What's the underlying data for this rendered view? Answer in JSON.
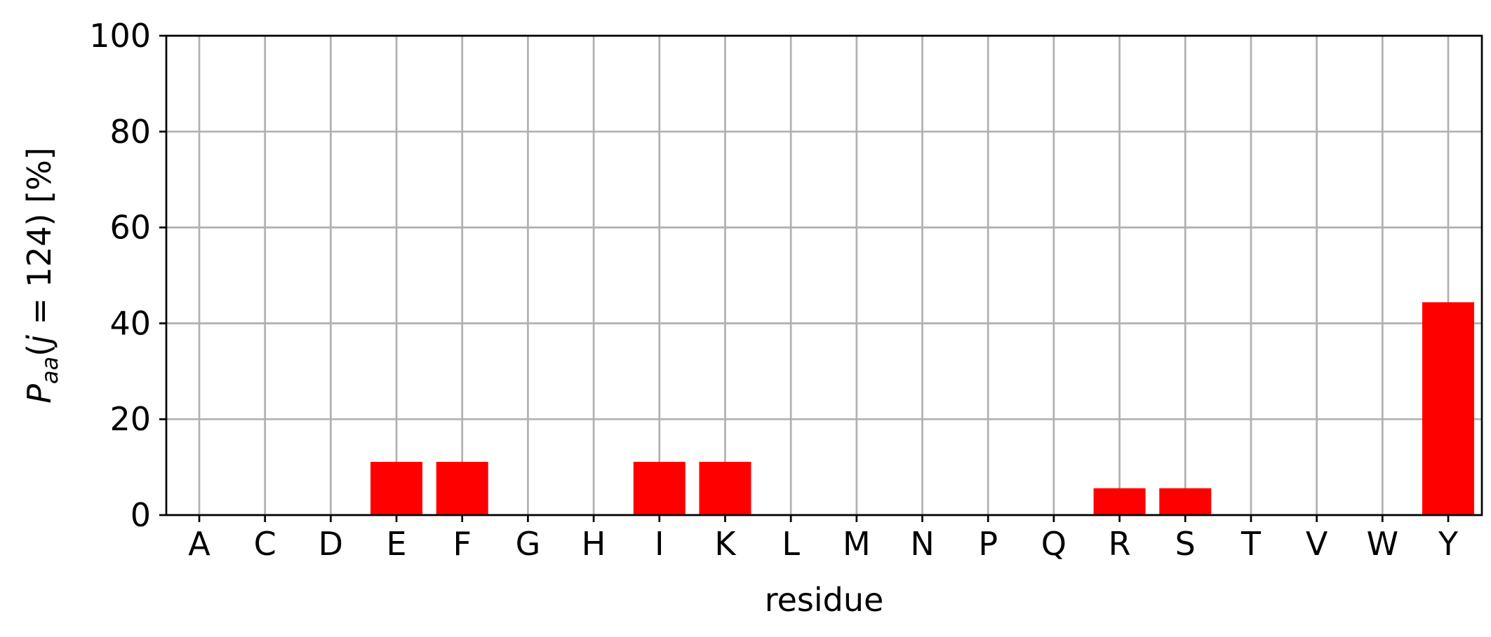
{
  "chart_data": {
    "type": "bar",
    "title": "",
    "xlabel": "residue",
    "ylabel": {
      "P": "P",
      "sub": "aa",
      "open": "(",
      "j": "j",
      "rest": " = 124) [%]"
    },
    "categories": [
      "A",
      "C",
      "D",
      "E",
      "F",
      "G",
      "H",
      "I",
      "K",
      "L",
      "M",
      "N",
      "P",
      "Q",
      "R",
      "S",
      "T",
      "V",
      "W",
      "Y"
    ],
    "values": [
      0,
      0,
      0,
      11.1,
      11.1,
      0,
      0,
      11.1,
      11.1,
      0,
      0,
      0,
      0,
      0,
      5.6,
      5.6,
      0,
      0,
      0,
      44.4
    ],
    "ylim": [
      0,
      100
    ],
    "yticks": [
      0,
      20,
      40,
      60,
      80,
      100
    ],
    "grid": true,
    "bar_color": "#ff0000"
  }
}
